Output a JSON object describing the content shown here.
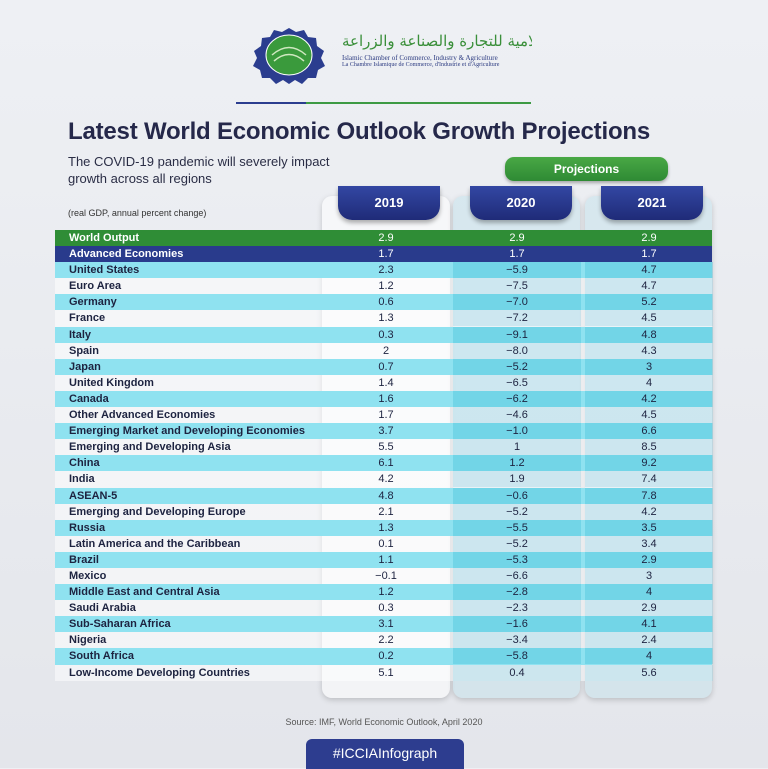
{
  "header": {
    "org_name_ar": "الغرفة الإسلامية للتجارة والصناعة والزراعة",
    "org_name_en": "Islamic Chamber of Commerce, Industry & Agriculture",
    "org_name_fr": "La Chambre Islamique de Commerce, d'Industrie et d'Agriculture"
  },
  "title": "Latest World Economic Outlook Growth Projections",
  "subtitle": "The COVID-19 pandemic will severely impact growth across all regions",
  "projections_label": "Projections",
  "unit_note": "(real GDP, annual percent change)",
  "source": "Source: IMF, World Economic Outlook, April 2020",
  "hashtag": "#ICCIAInfograph",
  "colors": {
    "world_output": "#2f8d36",
    "advanced": "#293b8c",
    "row_cyan": "#8fe2f0",
    "header_blue": "#2b3a8f"
  },
  "chart_data": {
    "type": "table",
    "columns": [
      "2019",
      "2020",
      "2021"
    ],
    "rows": [
      {
        "name": "World Output",
        "values": [
          "2.9",
          "2.9",
          "2.9"
        ]
      },
      {
        "name": "Advanced Economies",
        "values": [
          "1.7",
          "1.7",
          "1.7"
        ]
      },
      {
        "name": "United States",
        "values": [
          "2.3",
          "−5.9",
          "4.7"
        ]
      },
      {
        "name": "Euro Area",
        "values": [
          "1.2",
          "−7.5",
          "4.7"
        ]
      },
      {
        "name": "Germany",
        "values": [
          "0.6",
          "−7.0",
          "5.2"
        ]
      },
      {
        "name": "France",
        "values": [
          "1.3",
          "−7.2",
          "4.5"
        ]
      },
      {
        "name": "Italy",
        "values": [
          "0.3",
          "−9.1",
          "4.8"
        ]
      },
      {
        "name": "Spain",
        "values": [
          "2",
          "−8.0",
          "4.3"
        ]
      },
      {
        "name": "Japan",
        "values": [
          "0.7",
          "−5.2",
          "3"
        ]
      },
      {
        "name": "United Kingdom",
        "values": [
          "1.4",
          "−6.5",
          "4"
        ]
      },
      {
        "name": "Canada",
        "values": [
          "1.6",
          "−6.2",
          "4.2"
        ]
      },
      {
        "name": "Other Advanced Economies",
        "values": [
          "1.7",
          "−4.6",
          "4.5"
        ]
      },
      {
        "name": "Emerging Market and Developing Economies",
        "values": [
          "3.7",
          "−1.0",
          "6.6"
        ]
      },
      {
        "name": "Emerging and Developing Asia",
        "values": [
          "5.5",
          "1",
          "8.5"
        ]
      },
      {
        "name": "China",
        "values": [
          "6.1",
          "1.2",
          "9.2"
        ]
      },
      {
        "name": "India",
        "values": [
          "4.2",
          "1.9",
          "7.4"
        ]
      },
      {
        "name": "ASEAN-5",
        "values": [
          "4.8",
          "−0.6",
          "7.8"
        ]
      },
      {
        "name": "Emerging and Developing Europe",
        "values": [
          "2.1",
          "−5.2",
          "4.2"
        ]
      },
      {
        "name": "Russia",
        "values": [
          "1.3",
          "−5.5",
          "3.5"
        ]
      },
      {
        "name": "Latin America and the Caribbean",
        "values": [
          "0.1",
          "−5.2",
          "3.4"
        ]
      },
      {
        "name": "Brazil",
        "values": [
          "1.1",
          "−5.3",
          "2.9"
        ]
      },
      {
        "name": "Mexico",
        "values": [
          "−0.1",
          "−6.6",
          "3"
        ]
      },
      {
        "name": "Middle East and Central Asia",
        "values": [
          "1.2",
          "−2.8",
          "4"
        ]
      },
      {
        "name": "Saudi Arabia",
        "values": [
          "0.3",
          "−2.3",
          "2.9"
        ]
      },
      {
        "name": "Sub-Saharan Africa",
        "values": [
          "3.1",
          "−1.6",
          "4.1"
        ]
      },
      {
        "name": "Nigeria",
        "values": [
          "2.2",
          "−3.4",
          "2.4"
        ]
      },
      {
        "name": "South Africa",
        "values": [
          "0.2",
          "−5.8",
          "4"
        ]
      },
      {
        "name": "Low-Income Developing Countries",
        "values": [
          "5.1",
          "0.4",
          "5.6"
        ]
      }
    ]
  }
}
